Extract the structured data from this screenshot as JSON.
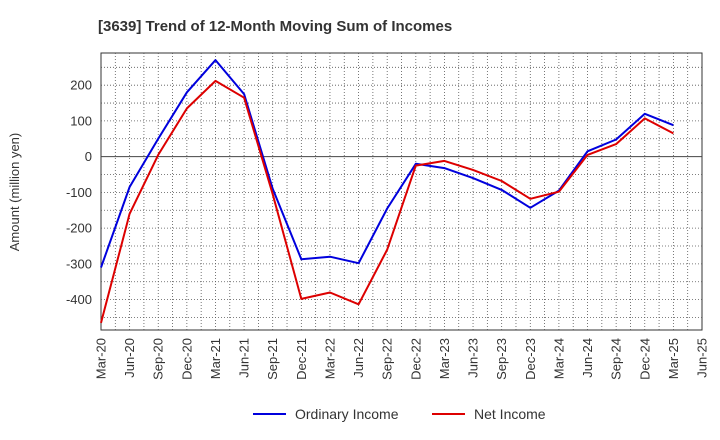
{
  "chart_data": {
    "type": "line",
    "title": "[3639]  Trend of 12-Month Moving Sum of Incomes",
    "xlabel": "",
    "ylabel": "Amount (million yen)",
    "categories": [
      "Mar-20",
      "Jun-20",
      "Sep-20",
      "Dec-20",
      "Mar-21",
      "Jun-21",
      "Sep-21",
      "Dec-21",
      "Mar-22",
      "Jun-22",
      "Sep-22",
      "Dec-22",
      "Mar-23",
      "Jun-23",
      "Sep-23",
      "Dec-23",
      "Mar-24",
      "Jun-24",
      "Sep-24",
      "Dec-24",
      "Mar-25",
      "Jun-25"
    ],
    "yticks": [
      -400,
      -300,
      -200,
      -100,
      0,
      100,
      200
    ],
    "ylim": [
      -485,
      290
    ],
    "grid": true,
    "legend_position": "bottom",
    "series": [
      {
        "name": "Ordinary Income",
        "color": "#0000dd",
        "values": [
          -310,
          -85,
          50,
          180,
          270,
          175,
          -90,
          -287,
          -280,
          -298,
          -145,
          -20,
          -32,
          -60,
          -93,
          -143,
          -95,
          15,
          48,
          120,
          88,
          null
        ]
      },
      {
        "name": "Net Income",
        "color": "#dd0000",
        "values": [
          -465,
          -160,
          5,
          135,
          212,
          165,
          -105,
          -398,
          -380,
          -413,
          -260,
          -25,
          -12,
          -37,
          -68,
          -118,
          -98,
          5,
          35,
          107,
          65,
          null
        ]
      }
    ]
  }
}
